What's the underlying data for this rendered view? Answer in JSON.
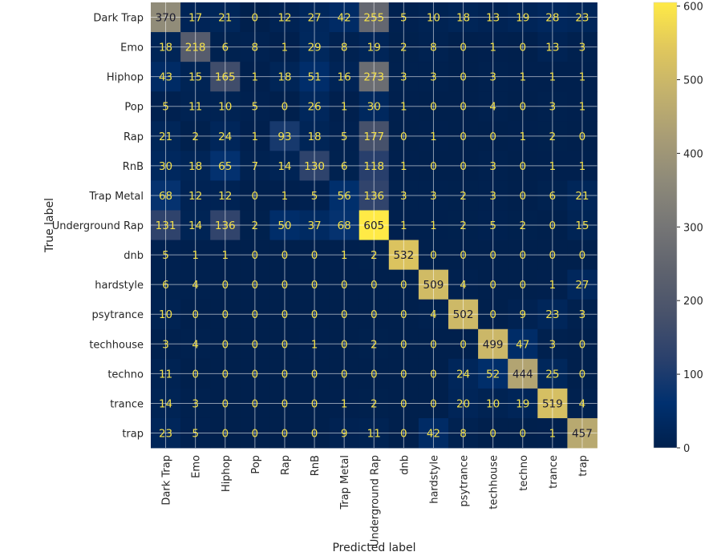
{
  "chart_data": {
    "type": "heatmap",
    "title": "",
    "xlabel": "Predicted label",
    "ylabel": "True label",
    "labels": [
      "Dark Trap",
      "Emo",
      "Hiphop",
      "Pop",
      "Rap",
      "RnB",
      "Trap Metal",
      "Underground Rap",
      "dnb",
      "hardstyle",
      "psytrance",
      "techhouse",
      "techno",
      "trance",
      "trap"
    ],
    "matrix": [
      [
        370,
        17,
        21,
        0,
        12,
        27,
        42,
        255,
        5,
        10,
        18,
        13,
        19,
        28,
        23
      ],
      [
        18,
        218,
        6,
        8,
        1,
        29,
        8,
        19,
        2,
        8,
        0,
        1,
        0,
        13,
        3
      ],
      [
        43,
        15,
        165,
        1,
        18,
        51,
        16,
        273,
        3,
        3,
        0,
        3,
        1,
        1,
        1
      ],
      [
        5,
        11,
        10,
        5,
        0,
        26,
        1,
        30,
        1,
        0,
        0,
        4,
        0,
        3,
        1
      ],
      [
        21,
        2,
        24,
        1,
        93,
        18,
        5,
        177,
        0,
        1,
        0,
        0,
        1,
        2,
        0
      ],
      [
        30,
        18,
        65,
        7,
        14,
        130,
        6,
        118,
        1,
        0,
        0,
        3,
        0,
        1,
        1
      ],
      [
        68,
        12,
        12,
        0,
        1,
        5,
        56,
        136,
        3,
        3,
        2,
        3,
        0,
        6,
        21
      ],
      [
        131,
        14,
        136,
        2,
        50,
        37,
        68,
        605,
        1,
        1,
        2,
        5,
        2,
        0,
        15
      ],
      [
        5,
        1,
        1,
        0,
        0,
        0,
        1,
        2,
        532,
        0,
        0,
        0,
        0,
        0,
        0
      ],
      [
        6,
        4,
        0,
        0,
        0,
        0,
        0,
        0,
        0,
        509,
        4,
        0,
        0,
        1,
        27
      ],
      [
        10,
        0,
        0,
        0,
        0,
        0,
        0,
        0,
        0,
        4,
        502,
        0,
        9,
        23,
        3
      ],
      [
        3,
        4,
        0,
        0,
        0,
        1,
        0,
        2,
        0,
        0,
        0,
        499,
        47,
        3,
        0
      ],
      [
        11,
        0,
        0,
        0,
        0,
        0,
        0,
        0,
        0,
        0,
        24,
        52,
        444,
        25,
        0
      ],
      [
        14,
        3,
        0,
        0,
        0,
        0,
        1,
        2,
        0,
        0,
        20,
        10,
        19,
        519,
        4
      ],
      [
        23,
        5,
        0,
        0,
        0,
        0,
        9,
        11,
        0,
        42,
        8,
        0,
        0,
        1,
        457
      ]
    ],
    "colormap": "cividis",
    "vmin": 0,
    "vmax": 605,
    "colorbar_ticks": [
      "0",
      "100",
      "200",
      "300",
      "400",
      "500",
      "600"
    ],
    "grid": true
  }
}
